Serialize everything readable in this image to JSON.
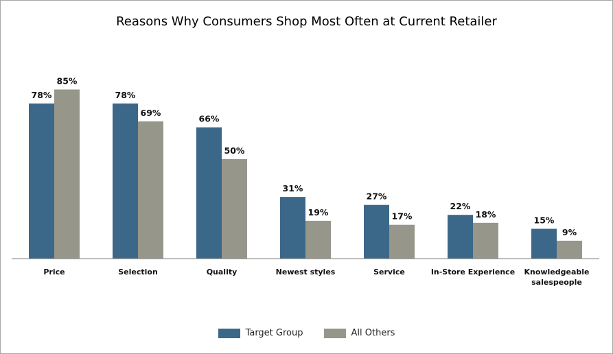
{
  "chart_data": {
    "type": "bar",
    "title": "Reasons Why Consumers Shop Most Often at Current Retailer",
    "categories": [
      "Price",
      "Selection",
      "Quality",
      "Newest styles",
      "Service",
      "In-Store Experience",
      "Knowledgeable salespeople"
    ],
    "category_lines": [
      [
        "Price"
      ],
      [
        "Selection"
      ],
      [
        "Quality"
      ],
      [
        "Newest styles"
      ],
      [
        "Service"
      ],
      [
        "In-Store Experience"
      ],
      [
        "Knowledgeable",
        "salespeople"
      ]
    ],
    "series": [
      {
        "name": "Target Group",
        "values": [
          78,
          78,
          66,
          31,
          27,
          22,
          15
        ],
        "labels": [
          "78%",
          "78%",
          "66%",
          "31%",
          "27%",
          "22%",
          "15%"
        ],
        "color": "#3b6889"
      },
      {
        "name": "All Others",
        "values": [
          85,
          69,
          50,
          19,
          17,
          18,
          9
        ],
        "labels": [
          "85%",
          "69%",
          "50%",
          "19%",
          "17%",
          "18%",
          "9%"
        ],
        "color": "#96968a"
      }
    ],
    "ylim": [
      0,
      100
    ],
    "xlabel": "",
    "ylabel": "",
    "grid": false,
    "legend_position": "bottom"
  }
}
